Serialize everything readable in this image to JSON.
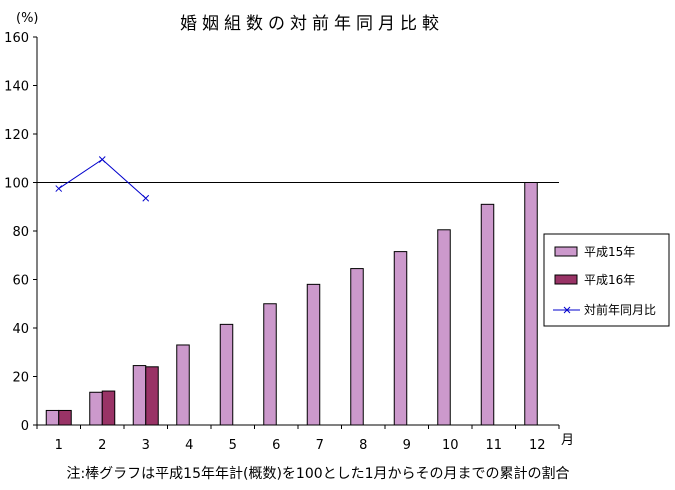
{
  "chart_data": {
    "type": "bar",
    "title": "婚姻組数の対前年同月比較",
    "y_unit": "(%)",
    "x_unit": "月",
    "categories": [
      "1",
      "2",
      "3",
      "4",
      "5",
      "6",
      "7",
      "8",
      "9",
      "10",
      "11",
      "12"
    ],
    "y_ticks": [
      "0",
      "20",
      "40",
      "60",
      "80",
      "100",
      "120",
      "140",
      "160"
    ],
    "ylim": [
      0,
      160
    ],
    "reference_line": 100,
    "series": [
      {
        "name": "平成15年",
        "kind": "bar",
        "color": "#cc99cc",
        "values": [
          6,
          13.5,
          24.5,
          33,
          41.5,
          50,
          58,
          64.5,
          71.5,
          80.5,
          91,
          100
        ]
      },
      {
        "name": "平成16年",
        "kind": "bar",
        "color": "#993366",
        "values": [
          6,
          14,
          24,
          null,
          null,
          null,
          null,
          null,
          null,
          null,
          null,
          null
        ]
      },
      {
        "name": "対前年同月比",
        "kind": "line",
        "color": "#0000cc",
        "values": [
          97.5,
          109.5,
          93.5,
          null,
          null,
          null,
          null,
          null,
          null,
          null,
          null,
          null
        ]
      }
    ],
    "legend_position": "right",
    "grid": false
  },
  "footnote": "注:棒グラフは平成15年年計(概数)を100とした1月からその月までの累計の割合"
}
